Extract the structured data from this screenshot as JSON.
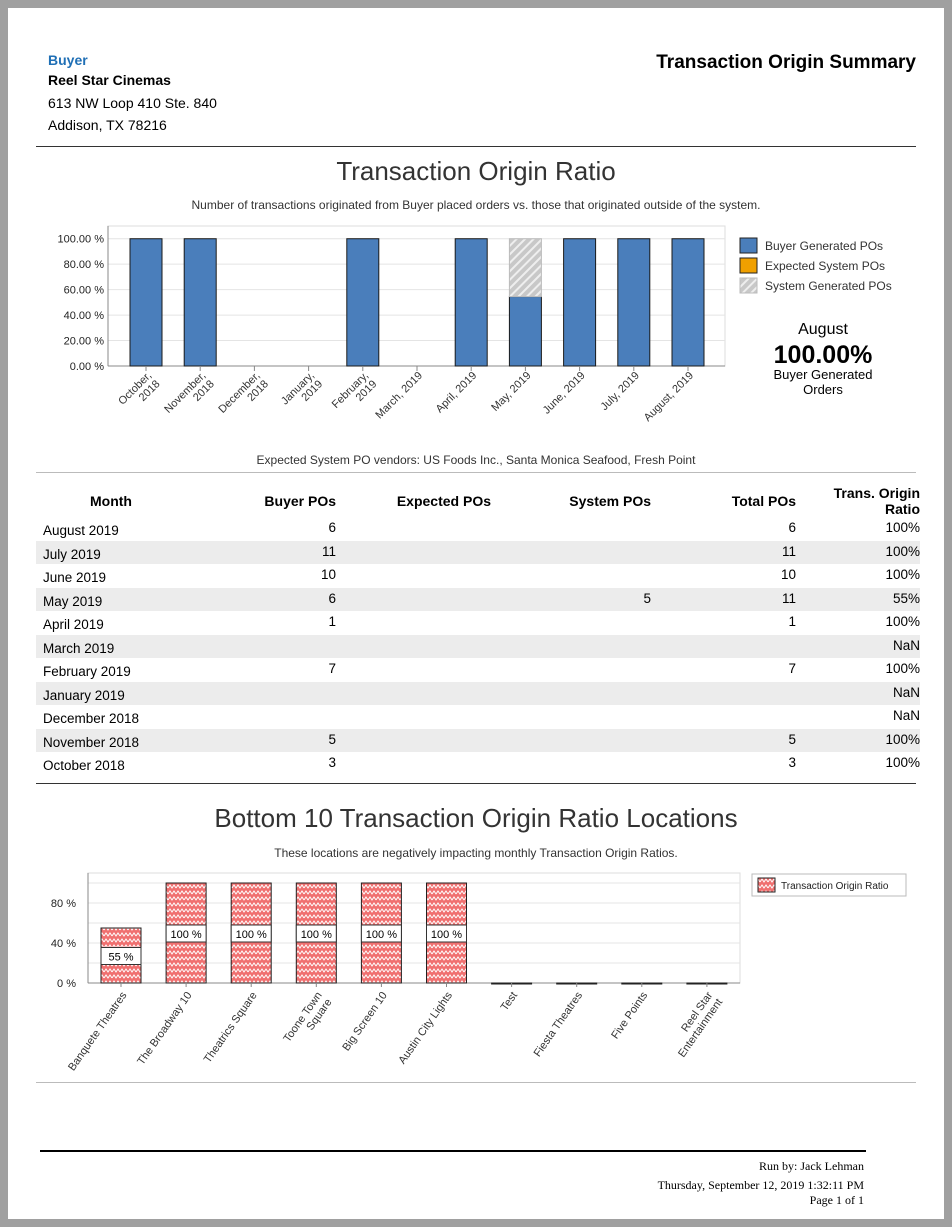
{
  "header": {
    "buyer_label": "Buyer",
    "name": "Reel Star Cinemas",
    "address1": "613 NW Loop 410 Ste. 840",
    "address2": "Addison, TX 78216",
    "report_title": "Transaction Origin Summary"
  },
  "chart_data": [
    {
      "type": "bar",
      "stacked": true,
      "title": "Transaction Origin Ratio",
      "subtitle": "Number of transactions originated from Buyer placed orders vs. those that originated outside of the system.",
      "categories": [
        "October, 2018",
        "November, 2018",
        "December, 2018",
        "January, 2019",
        "February, 2019",
        "March, 2019",
        "April, 2019",
        "May, 2019",
        "June, 2019",
        "July, 2019",
        "August, 2019"
      ],
      "series": [
        {
          "name": "Buyer Generated POs",
          "color": "#4a7ebb",
          "values": [
            100,
            100,
            0,
            0,
            100,
            0,
            100,
            54.55,
            100,
            100,
            100
          ]
        },
        {
          "name": "Expected System POs",
          "color": "#f0a000",
          "values": [
            0,
            0,
            0,
            0,
            0,
            0,
            0,
            0,
            0,
            0,
            0
          ]
        },
        {
          "name": "System Generated POs",
          "color": "#c8c8c8",
          "pattern": "hatched",
          "values": [
            0,
            0,
            0,
            0,
            0,
            0,
            0,
            45.45,
            0,
            0,
            0
          ]
        }
      ],
      "yticks": [
        "0.00 %",
        "20.00 %",
        "40.00 %",
        "60.00 %",
        "80.00 %",
        "100.00 %"
      ],
      "ylim": [
        0,
        110
      ],
      "grid": true,
      "legend": "right",
      "callout": {
        "month": "August",
        "value": "100.00%",
        "label": "Buyer Generated Orders"
      },
      "footnote": "Expected System PO vendors: US Foods Inc., Santa Monica Seafood, Fresh Point"
    },
    {
      "type": "bar",
      "title": "Bottom 10 Transaction Origin Ratio Locations",
      "subtitle": "These locations are negatively impacting monthly Transaction Origin Ratios.",
      "categories": [
        "Banquete Theatres",
        "The Broadway 10",
        "Theatrics Square",
        "Toone Town Square",
        "Big Screen 10",
        "Austin City Lights",
        "Test",
        "Fiesta Theatres",
        "Five Points",
        "Reel Star Entertainment"
      ],
      "series": [
        {
          "name": "Transaction Origin Ratio",
          "color": "#f07070",
          "pattern": "zigzag",
          "values": [
            55,
            100,
            100,
            100,
            100,
            100,
            0,
            0,
            0,
            0
          ]
        }
      ],
      "data_labels": [
        "55 %",
        "100 %",
        "100 %",
        "100 %",
        "100 %",
        "100 %",
        "",
        "",
        "",
        ""
      ],
      "yticks": [
        "0 %",
        "40 %",
        "80 %"
      ],
      "ylim": [
        0,
        110
      ],
      "grid": true,
      "legend": "top-right"
    }
  ],
  "table": {
    "columns": [
      "Month",
      "Buyer POs",
      "Expected POs",
      "System POs",
      "Total POs",
      "Trans. Origin Ratio"
    ],
    "rows": [
      [
        "August 2019",
        "6",
        "",
        "",
        "6",
        "100%"
      ],
      [
        "July 2019",
        "11",
        "",
        "",
        "11",
        "100%"
      ],
      [
        "June 2019",
        "10",
        "",
        "",
        "10",
        "100%"
      ],
      [
        "May 2019",
        "6",
        "",
        "5",
        "11",
        "55%"
      ],
      [
        "April 2019",
        "1",
        "",
        "",
        "1",
        "100%"
      ],
      [
        "March 2019",
        "",
        "",
        "",
        "",
        "NaN"
      ],
      [
        "February 2019",
        "7",
        "",
        "",
        "7",
        "100%"
      ],
      [
        "January 2019",
        "",
        "",
        "",
        "",
        "NaN"
      ],
      [
        "December 2018",
        "",
        "",
        "",
        "",
        "NaN"
      ],
      [
        "November 2018",
        "5",
        "",
        "",
        "5",
        "100%"
      ],
      [
        "October 2018",
        "3",
        "",
        "",
        "3",
        "100%"
      ]
    ]
  },
  "footer": {
    "run_by": "Run by: Jack Lehman",
    "datetime": "Thursday, September 12,  2019   1:32:11 PM",
    "page": "Page 1 of 1"
  }
}
